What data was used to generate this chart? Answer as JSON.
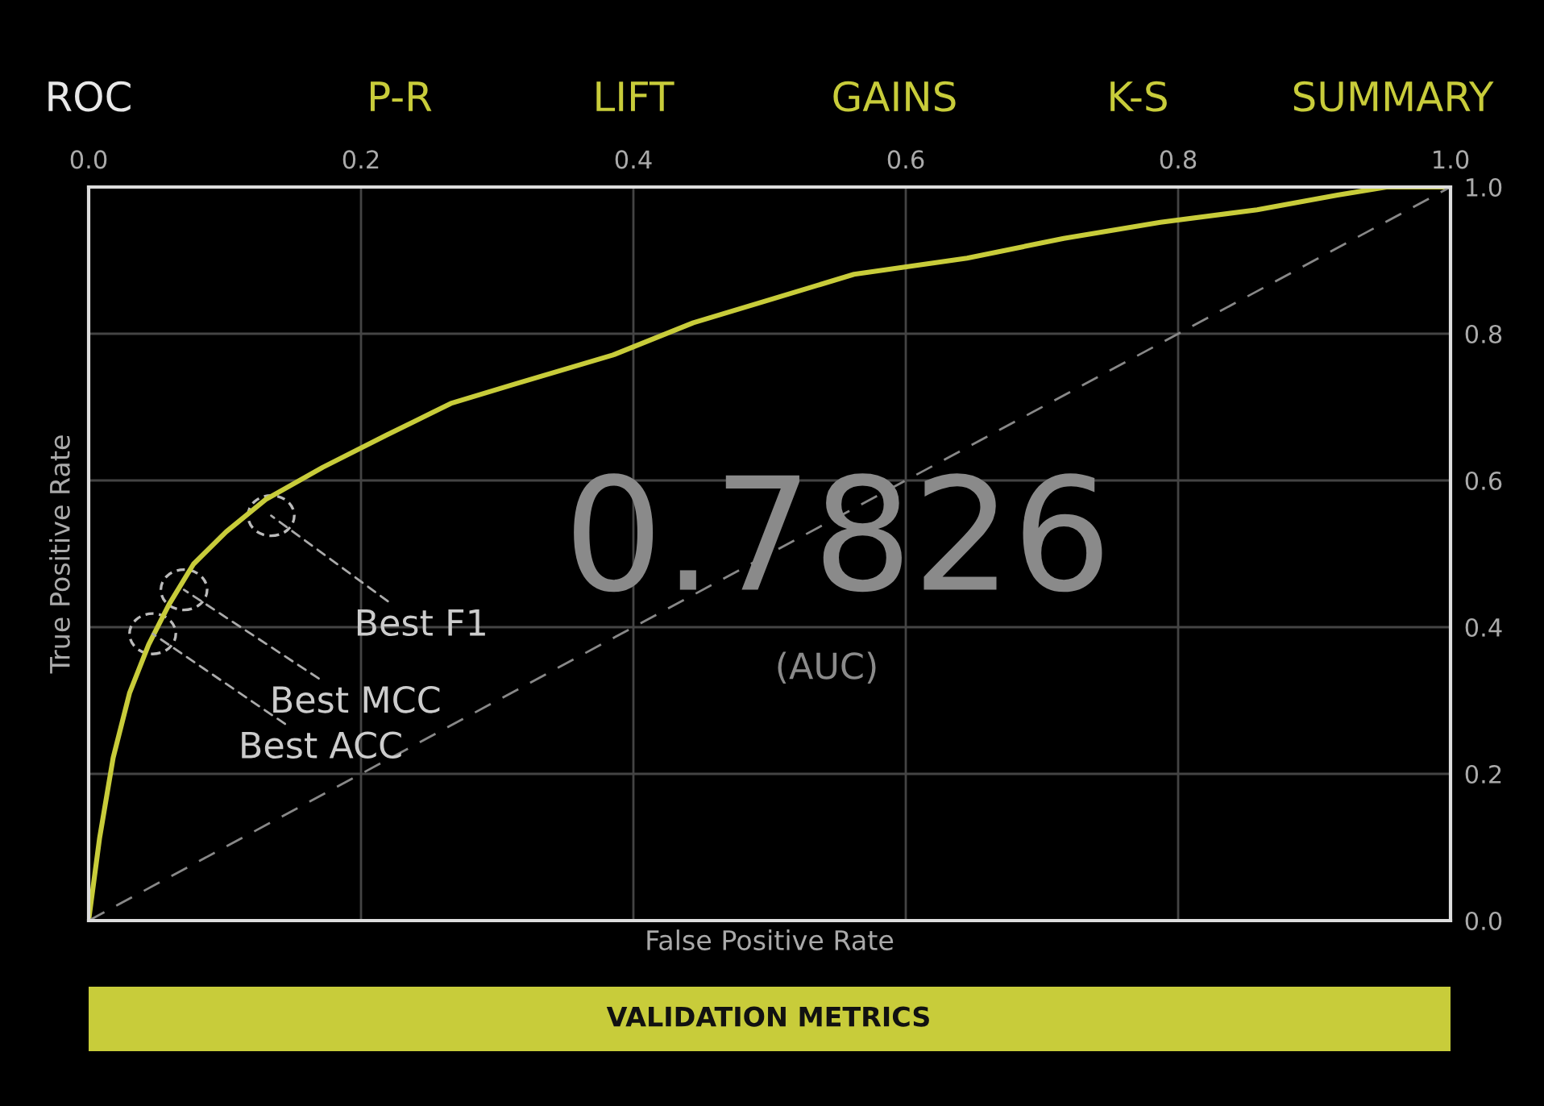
{
  "chart_data": {
    "type": "line",
    "xlabel": "False Positive Rate",
    "ylabel": "True Positive Rate",
    "xlim": [
      0,
      1
    ],
    "ylim": [
      0,
      1
    ],
    "xticks": [
      {
        "value": 0,
        "label": "0.0"
      },
      0.2,
      0.4,
      0.6,
      0.8,
      {
        "value": 1,
        "label": "1.0"
      }
    ],
    "yticks": [
      {
        "value": 0,
        "label": "0.0"
      },
      0.2,
      0.4,
      0.6,
      0.8,
      {
        "value": 1,
        "label": "1.0"
      }
    ],
    "grid": true,
    "marker": "none",
    "series": [
      {
        "color": "#c8cc3a",
        "line_style": "solid",
        "x": [
          0,
          0.008,
          0.018,
          0.03,
          0.044,
          0.059,
          0.077,
          0.101,
          0.13,
          0.172,
          0.219,
          0.266,
          0.314,
          0.385,
          0.444,
          0.503,
          0.562,
          0.645,
          0.716,
          0.787,
          0.858,
          0.917,
          0.953,
          1.0
        ],
        "values": [
          0,
          0.112,
          0.222,
          0.31,
          0.376,
          0.431,
          0.486,
          0.53,
          0.574,
          0.618,
          0.662,
          0.705,
          0.732,
          0.771,
          0.815,
          0.848,
          0.881,
          0.903,
          0.93,
          0.952,
          0.969,
          0.989,
          1.0,
          1.0
        ]
      },
      {
        "color": "#888888",
        "line_style": "dashed",
        "x": [
          0,
          1
        ],
        "values": [
          0,
          1
        ]
      }
    ],
    "annotations": [
      "ROC",
      "P-R",
      "LIFT",
      "GAINS",
      "K-S",
      "SUMMARY",
      "0.7826",
      "(AUC)",
      "VALIDATION METRICS",
      {
        "text": "Best F1",
        "x": 0.134,
        "y": 0.552
      },
      {
        "text": "Best MCC",
        "x": 0.07,
        "y": 0.451
      },
      {
        "text": "Best ACC",
        "x": 0.047,
        "y": 0.391
      }
    ]
  }
}
